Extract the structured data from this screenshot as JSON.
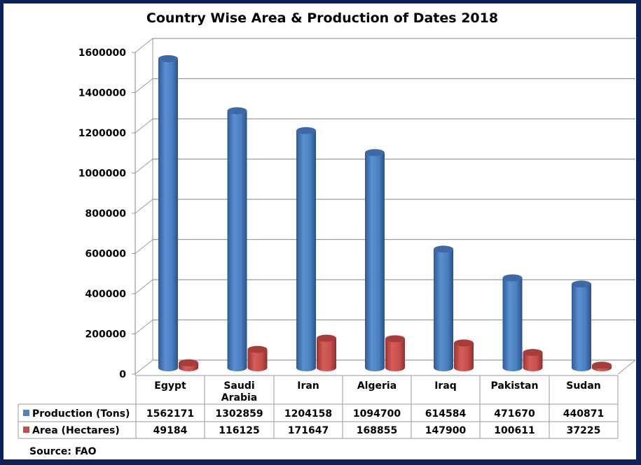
{
  "chart_data": {
    "type": "bar",
    "title": "Country Wise Area & Production of Dates 2018",
    "xlabel": "",
    "ylabel": "",
    "ylim": [
      0,
      1600000
    ],
    "yticks": [
      "0",
      "200000",
      "400000",
      "600000",
      "800000",
      "1000000",
      "1200000",
      "1400000",
      "1600000"
    ],
    "ytick_values": [
      0,
      200000,
      400000,
      600000,
      800000,
      1000000,
      1200000,
      1400000,
      1600000
    ],
    "grid": true,
    "style": "3d-cylinder",
    "legend_placement": "data-table-bottom",
    "categories": [
      [
        "Egypt"
      ],
      [
        "Saudi",
        "Arabia"
      ],
      [
        "Iran"
      ],
      [
        "Algeria"
      ],
      [
        "Iraq"
      ],
      [
        "Pakistan"
      ],
      [
        "Sudan"
      ]
    ],
    "series": [
      {
        "name": "Production (Tons)",
        "color": "#4f81bd",
        "values": [
          1562171,
          1302859,
          1204158,
          1094700,
          614584,
          471670,
          440871
        ]
      },
      {
        "name": "Area (Hectares)",
        "color": "#c0504d",
        "values": [
          49184,
          116125,
          171647,
          168855,
          147900,
          100611,
          37225
        ]
      }
    ],
    "source": "Source: FAO"
  },
  "colors": {
    "frame": "#0e2258",
    "grid": "#9a9a9a"
  }
}
